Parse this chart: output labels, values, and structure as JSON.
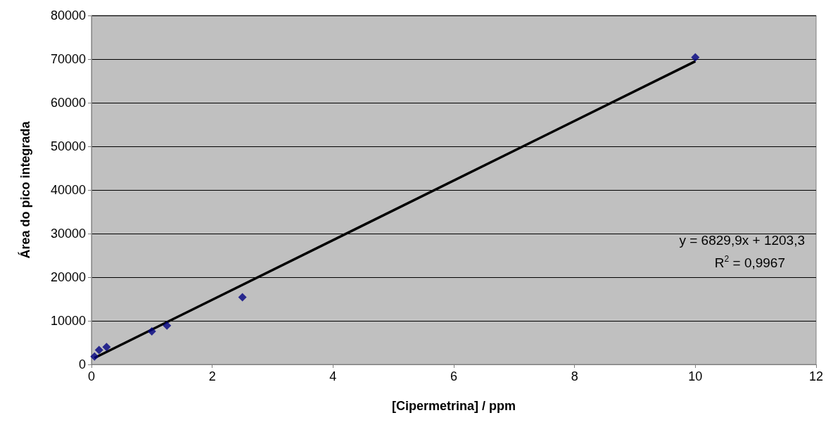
{
  "chart_data": {
    "type": "scatter",
    "xlabel": "[Cipermetrina] / ppm",
    "ylabel": "Área do pico integrada",
    "series": [
      {
        "color": "#000080",
        "marker": "diamond",
        "x": [
          0.05,
          0.125,
          0.25,
          1,
          1.25,
          2.5,
          10
        ],
        "values": [
          1800,
          3300,
          4000,
          7600,
          8900,
          15400,
          70400
        ]
      },
      {
        "type": "line",
        "color": "#000000",
        "marker": "none",
        "x": [
          0.05,
          10
        ],
        "values": [
          1500,
          69500
        ]
      }
    ],
    "xlim": [
      0,
      12
    ],
    "xticks": [
      0,
      2,
      4,
      6,
      8,
      10,
      12
    ],
    "ylim": [
      0,
      80000
    ],
    "yticks": [
      0,
      10000,
      20000,
      30000,
      40000,
      50000,
      60000,
      70000,
      80000
    ],
    "grid": "y",
    "annotations": [
      "y = 6829,9x + 1203,3",
      "R$^{2}$ = 0,9967"
    ]
  }
}
